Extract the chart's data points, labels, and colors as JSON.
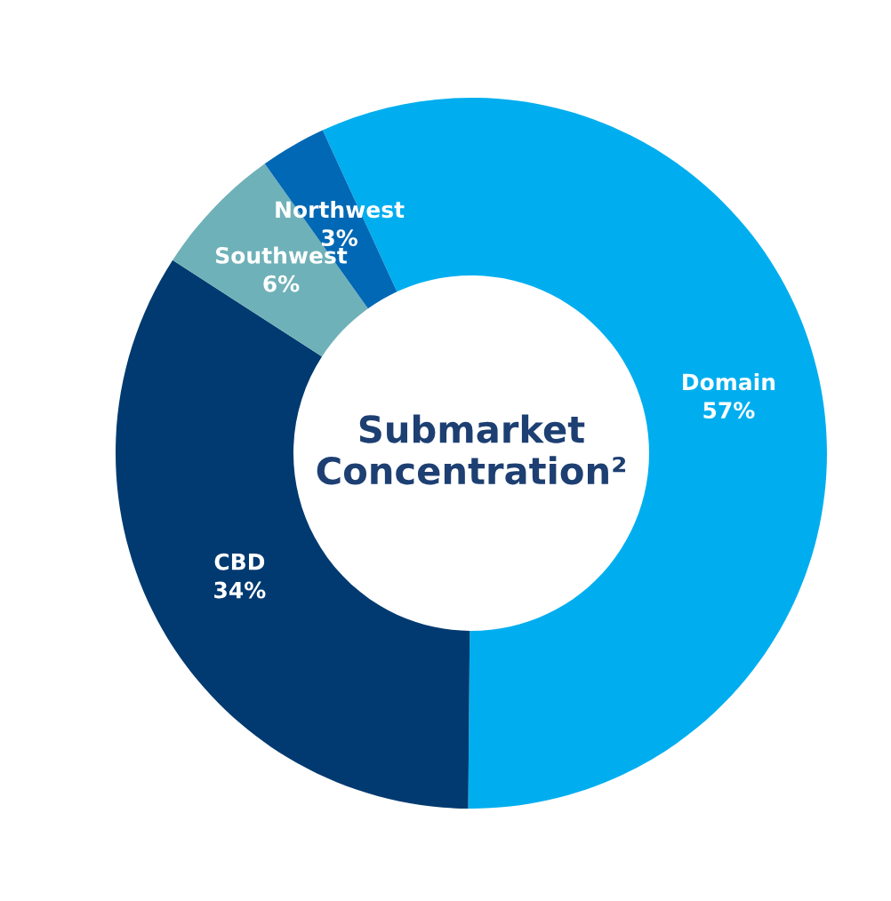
{
  "chart_data": {
    "type": "donut",
    "title": "Submarket Concentration²",
    "categories": [
      "Domain",
      "CBD",
      "Southwest",
      "Northwest"
    ],
    "values": [
      57,
      34,
      6,
      3
    ],
    "colors": [
      "#00aeef",
      "#003a70",
      "#6fb1b8",
      "#0068b5"
    ],
    "value_labels": [
      "57%",
      "34%",
      "6%",
      "3%"
    ],
    "legend": false
  }
}
